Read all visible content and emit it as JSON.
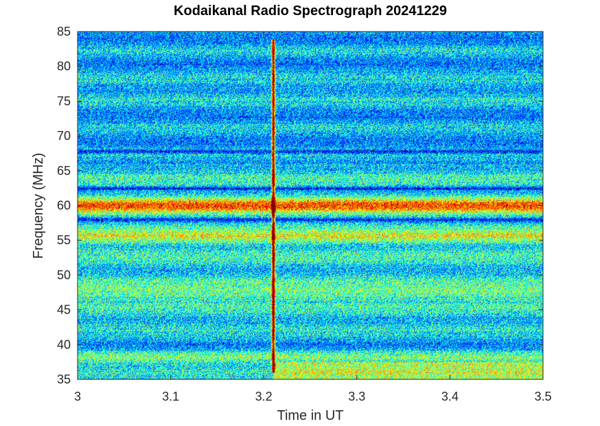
{
  "chart_data": {
    "type": "heatmap",
    "title": "Kodaikanal Radio Spectrograph  20241229",
    "xlabel": "Time in UT",
    "ylabel": "Frequency (MHz)",
    "xlim": [
      3.0,
      3.5
    ],
    "ylim": [
      35,
      85
    ],
    "x_ticks": [
      "3",
      "3.1",
      "3.2",
      "3.3",
      "3.4",
      "3.5"
    ],
    "y_ticks": [
      "35",
      "40",
      "45",
      "50",
      "55",
      "60",
      "65",
      "70",
      "75",
      "80",
      "85"
    ],
    "colormap": "jet",
    "background_level": "blue-cyan noise",
    "features": {
      "burst": {
        "time_ut": 3.21,
        "freq_range_mhz": [
          36,
          84
        ]
      },
      "emission_bands_mhz": [
        60,
        55.5,
        47.5,
        38.5,
        36
      ],
      "absorption_lines_mhz": [
        67.8,
        62.5,
        58
      ]
    },
    "grid": false
  }
}
